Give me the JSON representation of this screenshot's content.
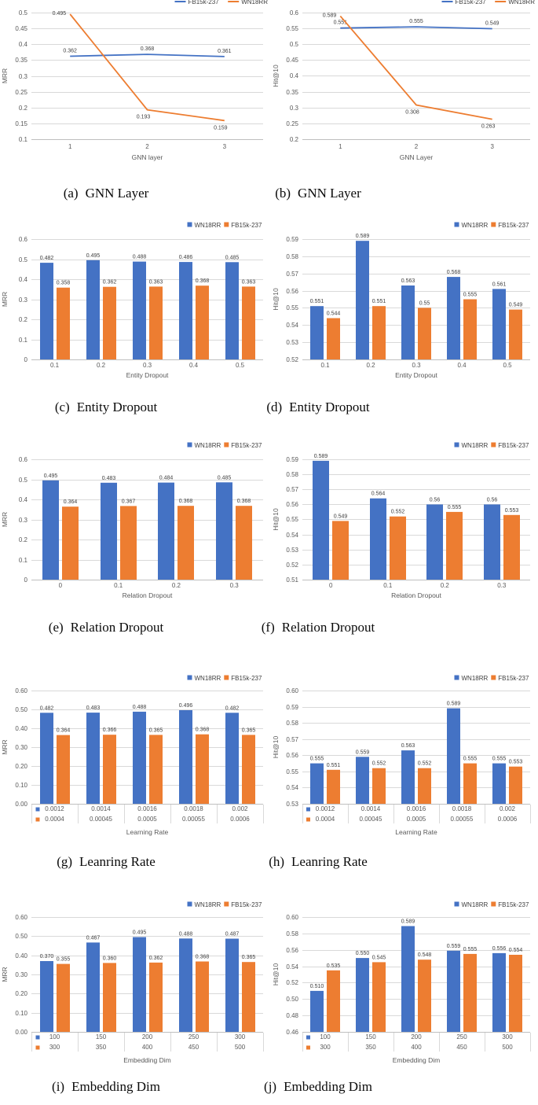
{
  "page": {
    "background": "#ffffff"
  },
  "colors": {
    "blue": "#4472C4",
    "orange": "#ED7D31",
    "grid": "#D9D9D9",
    "axis": "#BFBFBF",
    "tick_text": "#595959",
    "value_text": "#404040"
  },
  "captions": [
    {
      "tag": "(a)",
      "text": "GNN Layer"
    },
    {
      "tag": "(b)",
      "text": "GNN Layer"
    },
    {
      "tag": "(c)",
      "text": "Entity Dropout"
    },
    {
      "tag": "(d)",
      "text": "Entity Dropout"
    },
    {
      "tag": "(e)",
      "text": "Relation Dropout"
    },
    {
      "tag": "(f)",
      "text": "Relation Dropout"
    },
    {
      "tag": "(g)",
      "text": "Leanring Rate"
    },
    {
      "tag": "(h)",
      "text": "Leanring Rate"
    },
    {
      "tag": "(i)",
      "text": "Embedding Dim"
    },
    {
      "tag": "(j)",
      "text": "Embedding Dim"
    }
  ],
  "chart_data": [
    {
      "id": "a",
      "type": "line",
      "axis_rows": 1,
      "title": "",
      "ylabel": "MRR",
      "xlabel": "GNN layer",
      "ylim": [
        0.1,
        0.5
      ],
      "yticks": [
        "0.1",
        "0.15",
        "0.2",
        "0.25",
        "0.3",
        "0.35",
        "0.4",
        "0.45",
        "0.5"
      ],
      "categories": [
        "1",
        "2",
        "3"
      ],
      "legend": {
        "position": "top",
        "marker": "line",
        "items": [
          {
            "label": "FB15k-237",
            "color": "#4472C4"
          },
          {
            "label": "WN18RR",
            "color": "#ED7D31"
          }
        ]
      },
      "series": [
        {
          "name": "FB15k-237",
          "color": "#4472C4",
          "values": [
            0.362,
            0.368,
            0.361
          ],
          "labels": [
            "0.362",
            "0.368",
            "0.361"
          ],
          "label_pos": [
            "above",
            "above",
            "above"
          ]
        },
        {
          "name": "WN18RR",
          "color": "#ED7D31",
          "values": [
            0.495,
            0.193,
            0.159
          ],
          "labels": [
            "0.495",
            "0.193",
            "0.159"
          ],
          "label_pos": [
            "left",
            "below",
            "below"
          ]
        }
      ]
    },
    {
      "id": "b",
      "type": "line",
      "axis_rows": 1,
      "title": "",
      "ylabel": "Hit@10",
      "xlabel": "GNN Layer",
      "ylim": [
        0.2,
        0.6
      ],
      "yticks": [
        "0.2",
        "0.25",
        "0.3",
        "0.35",
        "0.4",
        "0.45",
        "0.5",
        "0.55",
        "0.6"
      ],
      "categories": [
        "1",
        "2",
        "3"
      ],
      "legend": {
        "position": "top",
        "marker": "line",
        "items": [
          {
            "label": "FB15k-237",
            "color": "#4472C4"
          },
          {
            "label": "WN18RR",
            "color": "#ED7D31"
          }
        ]
      },
      "series": [
        {
          "name": "FB15k-237",
          "color": "#4472C4",
          "values": [
            0.551,
            0.555,
            0.549
          ],
          "labels": [
            "0.551",
            "0.555",
            "0.549"
          ],
          "label_pos": [
            "above",
            "above",
            "above"
          ]
        },
        {
          "name": "WN18RR",
          "color": "#ED7D31",
          "values": [
            0.589,
            0.308,
            0.263
          ],
          "labels": [
            "0.589",
            "0.308",
            "0.263"
          ],
          "label_pos": [
            "left",
            "below",
            "below"
          ]
        }
      ]
    },
    {
      "id": "c",
      "type": "bar",
      "axis_rows": 1,
      "title": "",
      "ylabel": "MRR",
      "xlabel": "Entity Dropout",
      "ylim": [
        0,
        0.6
      ],
      "yticks": [
        "0",
        "0.1",
        "0.2",
        "0.3",
        "0.4",
        "0.5",
        "0.6"
      ],
      "categories": [
        "0.1",
        "0.2",
        "0.3",
        "0.4",
        "0.5"
      ],
      "legend": {
        "position": "inside-top-right",
        "marker": "square",
        "items": [
          {
            "label": "WN18RR",
            "color": "#4472C4"
          },
          {
            "label": "FB15k-237",
            "color": "#ED7D31"
          }
        ]
      },
      "series": [
        {
          "name": "WN18RR",
          "color": "#4472C4",
          "values": [
            0.482,
            0.495,
            0.488,
            0.486,
            0.485
          ],
          "labels": [
            "0.482",
            "0.495",
            "0.488",
            "0.486",
            "0.485"
          ]
        },
        {
          "name": "FB15k-237",
          "color": "#ED7D31",
          "values": [
            0.358,
            0.362,
            0.363,
            0.368,
            0.363
          ],
          "labels": [
            "0.358",
            "0.362",
            "0.363",
            "0.368",
            "0.363"
          ]
        }
      ]
    },
    {
      "id": "d",
      "type": "bar",
      "axis_rows": 1,
      "title": "",
      "ylabel": "Hit@10",
      "xlabel": "Entity Dropout",
      "ylim": [
        0.52,
        0.59
      ],
      "yticks": [
        "0.52",
        "0.53",
        "0.54",
        "0.55",
        "0.56",
        "0.57",
        "0.58",
        "0.59"
      ],
      "categories": [
        "0.1",
        "0.2",
        "0.3",
        "0.4",
        "0.5"
      ],
      "legend": {
        "position": "inside-top-right",
        "marker": "square",
        "items": [
          {
            "label": "WN18RR",
            "color": "#4472C4"
          },
          {
            "label": "FB15k-237",
            "color": "#ED7D31"
          }
        ]
      },
      "series": [
        {
          "name": "WN18RR",
          "color": "#4472C4",
          "values": [
            0.551,
            0.589,
            0.563,
            0.568,
            0.561
          ],
          "labels": [
            "0.551",
            "0.589",
            "0.563",
            "0.568",
            "0.561"
          ]
        },
        {
          "name": "FB15k-237",
          "color": "#ED7D31",
          "values": [
            0.544,
            0.551,
            0.55,
            0.555,
            0.549
          ],
          "labels": [
            "0.544",
            "0.551",
            "0.55",
            "0.555",
            "0.549"
          ]
        }
      ]
    },
    {
      "id": "e",
      "type": "bar",
      "axis_rows": 1,
      "title": "",
      "ylabel": "MRR",
      "xlabel": "Relation Dropout",
      "ylim": [
        0,
        0.6
      ],
      "yticks": [
        "0",
        "0.1",
        "0.2",
        "0.3",
        "0.4",
        "0.5",
        "0.6"
      ],
      "categories": [
        "0",
        "0.1",
        "0.2",
        "0.3"
      ],
      "legend": {
        "position": "inside-top-right",
        "marker": "square",
        "items": [
          {
            "label": "WN18RR",
            "color": "#4472C4"
          },
          {
            "label": "FB15k-237",
            "color": "#ED7D31"
          }
        ]
      },
      "series": [
        {
          "name": "WN18RR",
          "color": "#4472C4",
          "values": [
            0.495,
            0.483,
            0.484,
            0.485
          ],
          "labels": [
            "0.495",
            "0.483",
            "0.484",
            "0.485"
          ]
        },
        {
          "name": "FB15k-237",
          "color": "#ED7D31",
          "values": [
            0.364,
            0.367,
            0.368,
            0.368
          ],
          "labels": [
            "0.364",
            "0.367",
            "0.368",
            "0.368"
          ]
        }
      ]
    },
    {
      "id": "f",
      "type": "bar",
      "axis_rows": 1,
      "title": "",
      "ylabel": "Hit@10",
      "xlabel": "Relation Dropout",
      "ylim": [
        0.51,
        0.59
      ],
      "yticks": [
        "0.51",
        "0.52",
        "0.53",
        "0.54",
        "0.55",
        "0.56",
        "0.57",
        "0.58",
        "0.59"
      ],
      "categories": [
        "0",
        "0.1",
        "0.2",
        "0.3"
      ],
      "legend": {
        "position": "inside-top-right",
        "marker": "square",
        "items": [
          {
            "label": "WN18RR",
            "color": "#4472C4"
          },
          {
            "label": "FB15k-237",
            "color": "#ED7D31"
          }
        ]
      },
      "series": [
        {
          "name": "WN18RR",
          "color": "#4472C4",
          "values": [
            0.589,
            0.564,
            0.56,
            0.56
          ],
          "labels": [
            "0.589",
            "0.564",
            "0.56",
            "0.56"
          ]
        },
        {
          "name": "FB15k-237",
          "color": "#ED7D31",
          "values": [
            0.549,
            0.552,
            0.555,
            0.553
          ],
          "labels": [
            "0.549",
            "0.552",
            "0.555",
            "0.553"
          ]
        }
      ]
    },
    {
      "id": "g",
      "type": "bar",
      "axis_rows": 2,
      "title": "",
      "ylabel": "MRR",
      "xlabel": "Learning Rate",
      "ylim": [
        0,
        0.6
      ],
      "yticks": [
        "0.00",
        "0.10",
        "0.20",
        "0.30",
        "0.40",
        "0.50",
        "0.60"
      ],
      "categories": [
        "0.0012",
        "0.0014",
        "0.0016",
        "0.0018",
        "0.002"
      ],
      "categories2": [
        "0.0004",
        "0.00045",
        "0.0005",
        "0.00055",
        "0.0006"
      ],
      "legend": {
        "position": "inside-top-right",
        "marker": "square",
        "items": [
          {
            "label": "WN18RR",
            "color": "#4472C4"
          },
          {
            "label": "FB15k-237",
            "color": "#ED7D31"
          }
        ]
      },
      "series": [
        {
          "name": "WN18RR",
          "color": "#4472C4",
          "values": [
            0.482,
            0.483,
            0.488,
            0.496,
            0.482
          ],
          "labels": [
            "0.482",
            "0.483",
            "0.488",
            "0.496",
            "0.482"
          ]
        },
        {
          "name": "FB15k-237",
          "color": "#ED7D31",
          "values": [
            0.364,
            0.366,
            0.365,
            0.368,
            0.365
          ],
          "labels": [
            "0.364",
            "0.366",
            "0.365",
            "0.368",
            "0.365"
          ]
        }
      ]
    },
    {
      "id": "h",
      "type": "bar",
      "axis_rows": 2,
      "title": "",
      "ylabel": "Hit@10",
      "xlabel": "Learning Rate",
      "ylim": [
        0.53,
        0.6
      ],
      "yticks": [
        "0.53",
        "0.54",
        "0.55",
        "0.56",
        "0.57",
        "0.58",
        "0.59",
        "0.60"
      ],
      "categories": [
        "0.0012",
        "0.0014",
        "0.0016",
        "0.0018",
        "0.002"
      ],
      "categories2": [
        "0.0004",
        "0.00045",
        "0.0005",
        "0.00055",
        "0.0006"
      ],
      "legend": {
        "position": "inside-top-right",
        "marker": "square",
        "items": [
          {
            "label": "WN18RR",
            "color": "#4472C4"
          },
          {
            "label": "FB15k-237",
            "color": "#ED7D31"
          }
        ]
      },
      "series": [
        {
          "name": "WN18RR",
          "color": "#4472C4",
          "values": [
            0.555,
            0.559,
            0.563,
            0.589,
            0.555
          ],
          "labels": [
            "0.555",
            "0.559",
            "0.563",
            "0.589",
            "0.555"
          ]
        },
        {
          "name": "FB15k-237",
          "color": "#ED7D31",
          "values": [
            0.551,
            0.552,
            0.552,
            0.555,
            0.553
          ],
          "labels": [
            "0.551",
            "0.552",
            "0.552",
            "0.555",
            "0.553"
          ]
        }
      ]
    },
    {
      "id": "i",
      "type": "bar",
      "axis_rows": 2,
      "title": "",
      "ylabel": "MRR",
      "xlabel": "Embedding Dim",
      "ylim": [
        0,
        0.6
      ],
      "yticks": [
        "0.00",
        "0.10",
        "0.20",
        "0.30",
        "0.40",
        "0.50",
        "0.60"
      ],
      "categories": [
        "100",
        "150",
        "200",
        "250",
        "300"
      ],
      "categories2": [
        "300",
        "350",
        "400",
        "450",
        "500"
      ],
      "legend": {
        "position": "inside-top-right",
        "marker": "square",
        "items": [
          {
            "label": "WN18RR",
            "color": "#4472C4"
          },
          {
            "label": "FB15k-237",
            "color": "#ED7D31"
          }
        ]
      },
      "series": [
        {
          "name": "WN18RR",
          "color": "#4472C4",
          "values": [
            0.37,
            0.467,
            0.495,
            0.488,
            0.487
          ],
          "labels": [
            "0.370",
            "0.467",
            "0.495",
            "0.488",
            "0.487"
          ]
        },
        {
          "name": "FB15k-237",
          "color": "#ED7D31",
          "values": [
            0.355,
            0.36,
            0.362,
            0.368,
            0.365
          ],
          "labels": [
            "0.355",
            "0.360",
            "0.362",
            "0.368",
            "0.365"
          ]
        }
      ]
    },
    {
      "id": "j",
      "type": "bar",
      "axis_rows": 2,
      "title": "",
      "ylabel": "Hit@10",
      "xlabel": "Embedding Dim",
      "ylim": [
        0.46,
        0.6
      ],
      "yticks": [
        "0.46",
        "0.48",
        "0.50",
        "0.52",
        "0.54",
        "0.56",
        "0.58",
        "0.60"
      ],
      "categories": [
        "100",
        "150",
        "200",
        "250",
        "300"
      ],
      "categories2": [
        "300",
        "350",
        "400",
        "450",
        "500"
      ],
      "legend": {
        "position": "inside-top-right",
        "marker": "square",
        "items": [
          {
            "label": "WN18RR",
            "color": "#4472C4"
          },
          {
            "label": "FB15k-237",
            "color": "#ED7D31"
          }
        ]
      },
      "series": [
        {
          "name": "WN18RR",
          "color": "#4472C4",
          "values": [
            0.51,
            0.55,
            0.589,
            0.559,
            0.556
          ],
          "labels": [
            "0.510",
            "0.550",
            "0.589",
            "0.559",
            "0.556"
          ]
        },
        {
          "name": "FB15k-237",
          "color": "#ED7D31",
          "values": [
            0.535,
            0.545,
            0.548,
            0.555,
            0.554
          ],
          "labels": [
            "0.535",
            "0.545",
            "0.548",
            "0.555",
            "0.554"
          ]
        }
      ]
    }
  ]
}
